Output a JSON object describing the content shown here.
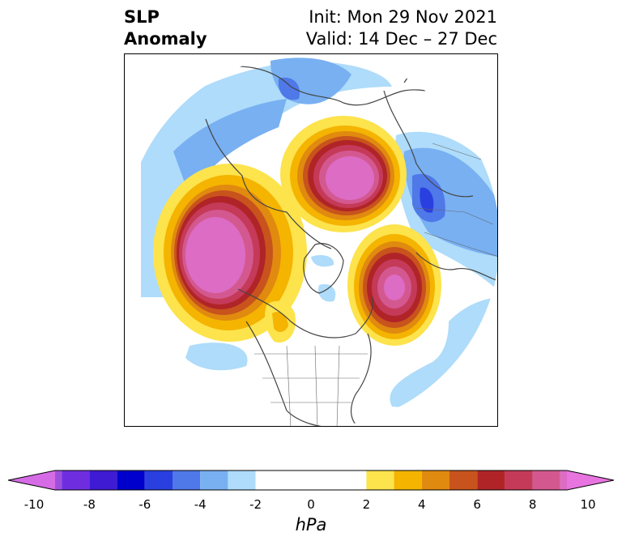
{
  "title": {
    "variable_line1": "SLP",
    "variable_line2": "Anomaly",
    "init": "Init: Mon 29 Nov 2021",
    "valid": "Valid: 14 Dec – 27 Dec"
  },
  "colorbar": {
    "unit_label": "hPa",
    "tick_labels": [
      "-10",
      "-8",
      "-6",
      "-4",
      "-2",
      "0",
      "2",
      "4",
      "6",
      "8",
      "10"
    ],
    "bins": [
      {
        "range": [
          -10,
          -9
        ],
        "color": "#9e50dc"
      },
      {
        "range": [
          -9,
          -8
        ],
        "color": "#6e2ee0"
      },
      {
        "range": [
          -8,
          -7
        ],
        "color": "#3f1bd4"
      },
      {
        "range": [
          -7,
          -6
        ],
        "color": "#0000cc"
      },
      {
        "range": [
          -6,
          -5
        ],
        "color": "#2a3fe0"
      },
      {
        "range": [
          -5,
          -4
        ],
        "color": "#4f78e8"
      },
      {
        "range": [
          -4,
          -3
        ],
        "color": "#78b0f2"
      },
      {
        "range": [
          -3,
          -2
        ],
        "color": "#aedcfa"
      },
      {
        "range": [
          -2,
          2
        ],
        "color": "#ffffff"
      },
      {
        "range": [
          2,
          3
        ],
        "color": "#fde34c"
      },
      {
        "range": [
          3,
          4
        ],
        "color": "#f4b400"
      },
      {
        "range": [
          4,
          5
        ],
        "color": "#e08a10"
      },
      {
        "range": [
          5,
          6
        ],
        "color": "#c8531c"
      },
      {
        "range": [
          6,
          7
        ],
        "color": "#b02428"
      },
      {
        "range": [
          7,
          8
        ],
        "color": "#c43a58"
      },
      {
        "range": [
          8,
          9
        ],
        "color": "#d45890"
      },
      {
        "range": [
          9,
          10
        ],
        "color": "#dc6cc4"
      }
    ],
    "under_color": "#d66be6",
    "over_color": "#e874e0"
  }
}
